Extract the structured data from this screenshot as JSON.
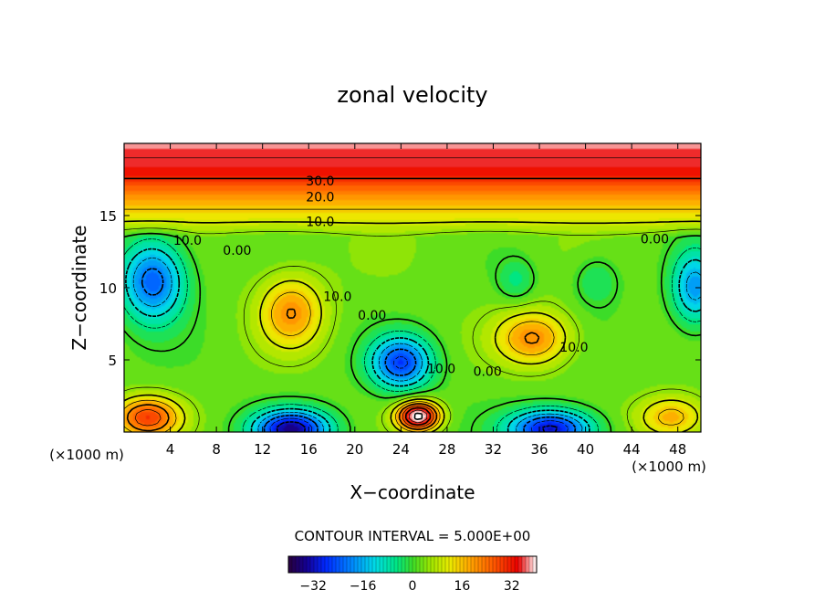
{
  "chart_data": {
    "type": "heatmap",
    "title": "zonal velocity",
    "xlabel": "X−coordinate",
    "ylabel": "Z−coordinate",
    "x_unit_left": "(×1000 m)",
    "x_unit_right": "(×1000 m)",
    "xlim": [
      0,
      50
    ],
    "ylim": [
      0,
      20
    ],
    "x_ticks": [
      4,
      8,
      12,
      16,
      20,
      24,
      28,
      32,
      36,
      40,
      44,
      48
    ],
    "y_ticks": [
      5,
      10,
      15
    ],
    "contour_interval_text": "CONTOUR INTERVAL =  5.000E+00",
    "colorbar": {
      "range": [
        -40,
        40
      ],
      "ticks": [
        -32,
        -16,
        0,
        16,
        32
      ]
    },
    "contour_labels": [
      {
        "text": "30.0",
        "x": 17.0,
        "y": 17.4
      },
      {
        "text": "20.0",
        "x": 17.0,
        "y": 16.3
      },
      {
        "text": "10.0",
        "x": 17.0,
        "y": 14.6
      },
      {
        "text": "10.0",
        "x": 5.5,
        "y": 13.3
      },
      {
        "text": "0.00",
        "x": 9.8,
        "y": 12.6
      },
      {
        "text": "10.0",
        "x": 18.5,
        "y": 9.4
      },
      {
        "text": "0.00",
        "x": 21.5,
        "y": 8.1
      },
      {
        "text": "10.0",
        "x": 27.5,
        "y": 4.4
      },
      {
        "text": "0.00",
        "x": 31.5,
        "y": 4.2
      },
      {
        "text": "10.0",
        "x": 39.0,
        "y": 5.9
      },
      {
        "text": "0.00",
        "x": 46.0,
        "y": 13.4
      }
    ],
    "features": [
      {
        "x": 2.5,
        "y": 10.5,
        "sx": 2.8,
        "sy": 2.8,
        "value": -26
      },
      {
        "x": 14.5,
        "y": 8.3,
        "sx": 2.8,
        "sy": 2.5,
        "value": 17
      },
      {
        "x": 24.0,
        "y": 4.8,
        "sx": 2.6,
        "sy": 1.8,
        "value": -28
      },
      {
        "x": 35.5,
        "y": 6.5,
        "sx": 3.2,
        "sy": 1.9,
        "value": 18
      },
      {
        "x": 49.5,
        "y": 10.0,
        "sx": 2.0,
        "sy": 2.6,
        "value": -20
      },
      {
        "x": 2.0,
        "y": 1.0,
        "sx": 2.8,
        "sy": 1.4,
        "value": 26
      },
      {
        "x": 14.5,
        "y": 0.2,
        "sx": 3.2,
        "sy": 1.3,
        "value": -36
      },
      {
        "x": 25.5,
        "y": 1.1,
        "sx": 1.8,
        "sy": 1.0,
        "value": 40
      },
      {
        "x": 37.0,
        "y": 0.2,
        "sx": 3.5,
        "sy": 1.3,
        "value": -34
      },
      {
        "x": 47.5,
        "y": 1.0,
        "sx": 3.0,
        "sy": 1.5,
        "value": 16
      },
      {
        "x": 34.0,
        "y": 10.5,
        "sx": 1.6,
        "sy": 1.5,
        "value": -7
      },
      {
        "x": 41.0,
        "y": 10.5,
        "sx": 2.0,
        "sy": 1.8,
        "value": -7
      }
    ],
    "background_profile": [
      {
        "z": 0,
        "value": 2
      },
      {
        "z": 13.5,
        "value": 3
      },
      {
        "z": 14.5,
        "value": 10
      },
      {
        "z": 16,
        "value": 18
      },
      {
        "z": 17,
        "value": 26
      },
      {
        "z": 18,
        "value": 33
      },
      {
        "z": 20,
        "value": 37
      }
    ]
  }
}
